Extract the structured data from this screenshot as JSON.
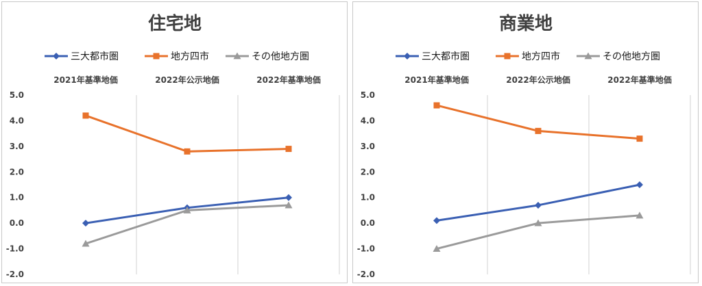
{
  "chart_data": [
    {
      "type": "line",
      "title": "住宅地",
      "categories": [
        "2021年基準地価",
        "2022年公示地価",
        "2022年基準地価"
      ],
      "ylim": [
        -2.0,
        5.0
      ],
      "yticks": [
        "5.0",
        "4.0",
        "3.0",
        "2.0",
        "1.0",
        "0.0",
        "-1.0",
        "-2.0"
      ],
      "grid": "vertical",
      "legend_position": "top",
      "series": [
        {
          "name": "三大都市圏",
          "values": [
            0.0,
            0.6,
            1.0
          ],
          "color": "#3a5fb3",
          "marker": "diamond"
        },
        {
          "name": "地方四市",
          "values": [
            4.2,
            2.8,
            2.9
          ],
          "color": "#e8722b",
          "marker": "square"
        },
        {
          "name": "その他地方圏",
          "values": [
            -0.8,
            0.5,
            0.7
          ],
          "color": "#9a9a9a",
          "marker": "triangle"
        }
      ]
    },
    {
      "type": "line",
      "title": "商業地",
      "categories": [
        "2021年基準地価",
        "2022年公示地価",
        "2022年基準地価"
      ],
      "ylim": [
        -2.0,
        5.0
      ],
      "yticks": [
        "5.0",
        "4.0",
        "3.0",
        "2.0",
        "1.0",
        "0.0",
        "-1.0",
        "-2.0"
      ],
      "grid": "vertical",
      "legend_position": "top",
      "series": [
        {
          "name": "三大都市圏",
          "values": [
            0.1,
            0.7,
            1.5
          ],
          "color": "#3a5fb3",
          "marker": "diamond"
        },
        {
          "name": "地方四市",
          "values": [
            4.6,
            3.6,
            3.3
          ],
          "color": "#e8722b",
          "marker": "square"
        },
        {
          "name": "その他地方圏",
          "values": [
            -1.0,
            0.0,
            0.3
          ],
          "color": "#9a9a9a",
          "marker": "triangle"
        }
      ]
    }
  ]
}
